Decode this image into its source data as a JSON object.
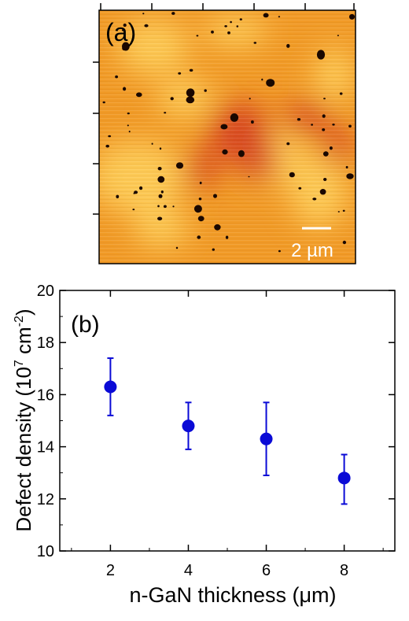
{
  "panel_a": {
    "label": "(a)",
    "scale_bar_label": "2 µm",
    "colors": {
      "base": "#f19a26",
      "bright": "#ffd25e",
      "dark": "#d4391e",
      "defect": "#1a0800"
    }
  },
  "chart_data": {
    "type": "scatter",
    "panel_label": "(b)",
    "xlabel": "n-GaN thickness (μm)",
    "ylabel_main": "Defect density (10",
    "ylabel_sup1": "7",
    "ylabel_mid": " cm",
    "ylabel_sup2": "-2",
    "ylabel_end": ")",
    "xlim": [
      0.7,
      9.3
    ],
    "ylim": [
      10,
      20
    ],
    "xticks": [
      2,
      4,
      6,
      8
    ],
    "yticks": [
      10,
      12,
      14,
      16,
      18,
      20
    ],
    "grid": false,
    "marker_color": "#0a0ad6",
    "points": [
      {
        "x": 2,
        "y": 16.3,
        "yerr_low": 15.2,
        "yerr_high": 17.4
      },
      {
        "x": 4,
        "y": 14.8,
        "yerr_low": 13.9,
        "yerr_high": 15.7
      },
      {
        "x": 6,
        "y": 14.3,
        "yerr_low": 12.9,
        "yerr_high": 15.7
      },
      {
        "x": 8,
        "y": 12.8,
        "yerr_low": 11.8,
        "yerr_high": 13.7
      }
    ]
  }
}
